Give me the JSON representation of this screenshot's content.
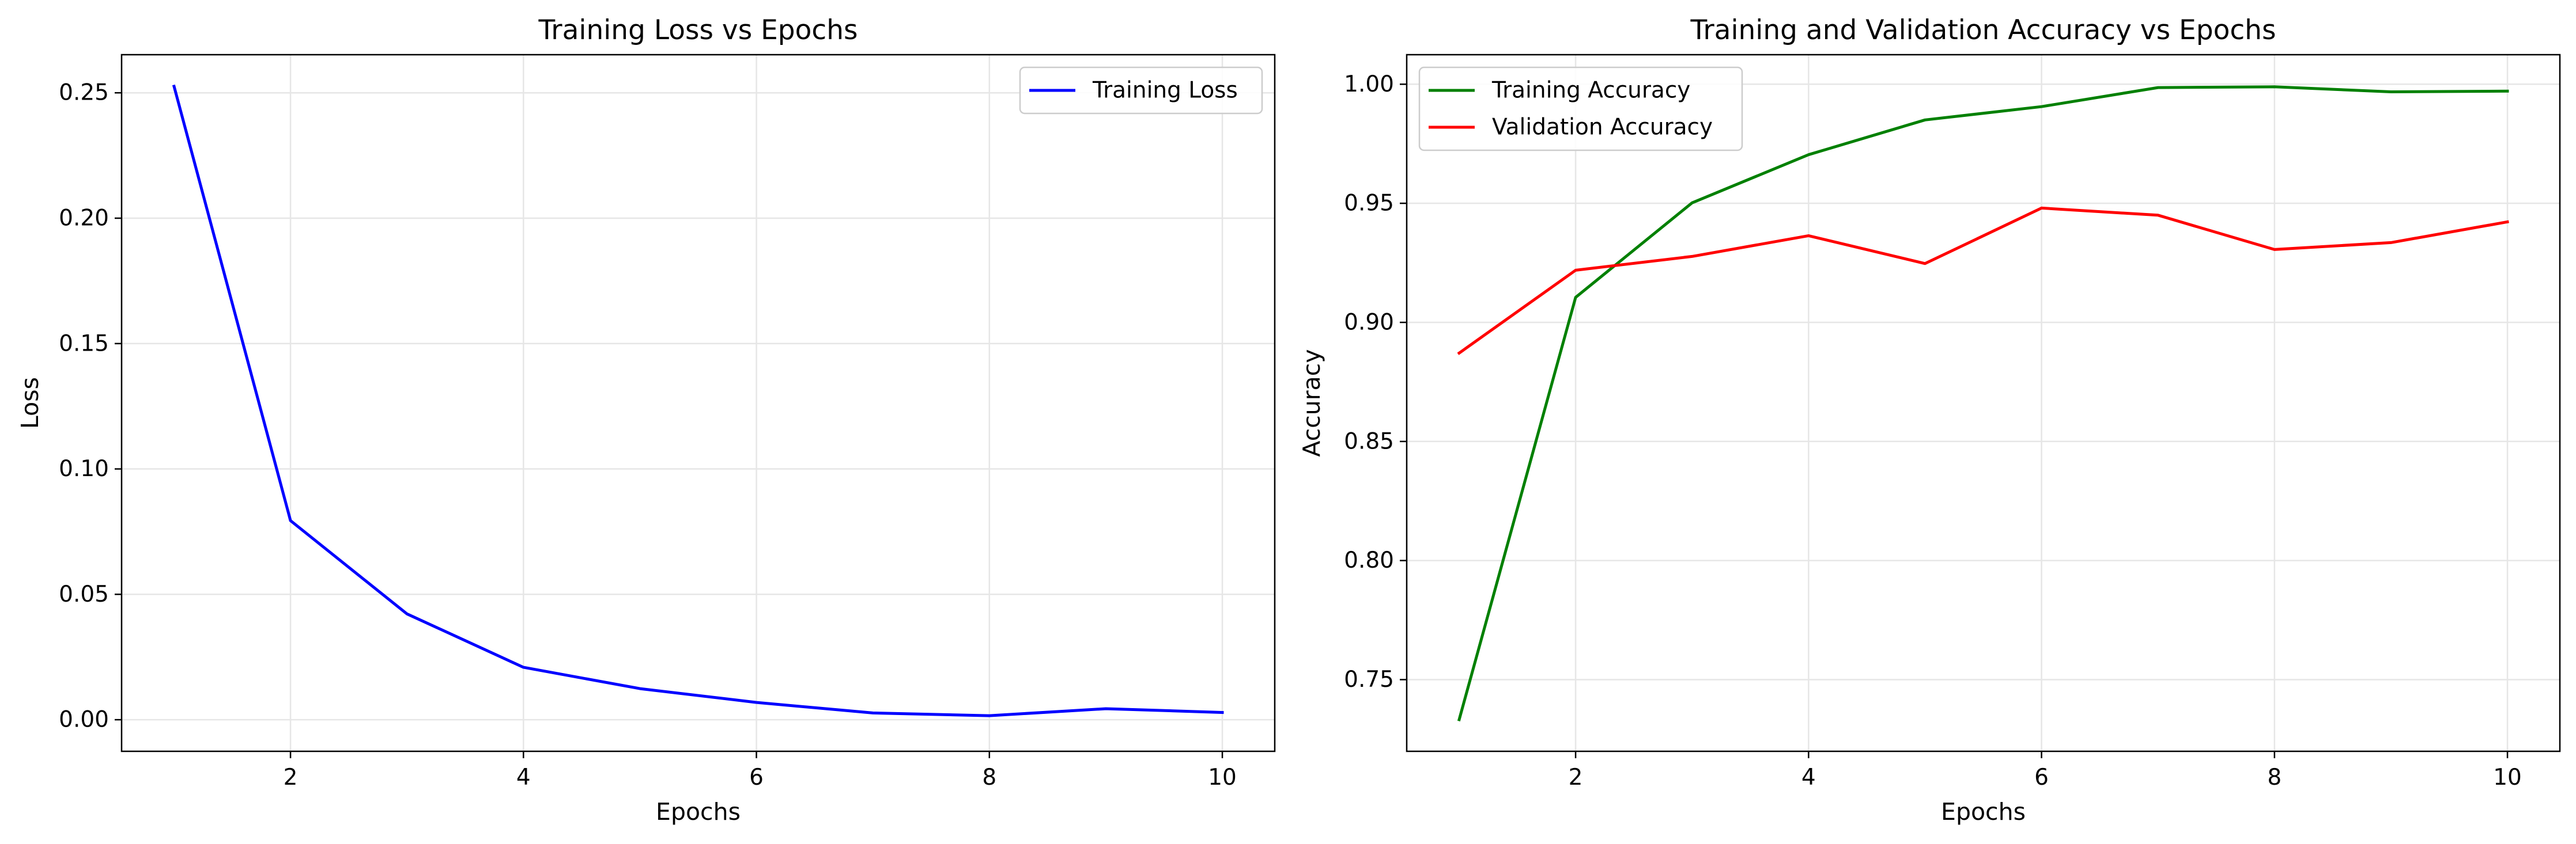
{
  "chart_data": [
    {
      "type": "line",
      "title": "Training Loss vs Epochs",
      "xlabel": "Epochs",
      "ylabel": "Loss",
      "x": [
        1,
        2,
        3,
        4,
        5,
        6,
        7,
        8,
        9,
        10
      ],
      "xlim": [
        0.55,
        10.45
      ],
      "ylim": [
        -0.0126,
        0.2652
      ],
      "xticks": [
        2,
        4,
        6,
        8,
        10
      ],
      "yticks": [
        0.0,
        0.05,
        0.1,
        0.15,
        0.2,
        0.25
      ],
      "ytick_labels": [
        "0.00",
        "0.05",
        "0.10",
        "0.15",
        "0.20",
        "0.25"
      ],
      "grid": true,
      "legend": "upper right",
      "series": [
        {
          "name": "Training Loss",
          "color": "#0000ff",
          "values": [
            0.2526,
            0.0794,
            0.0422,
            0.0209,
            0.0124,
            0.0069,
            0.0027,
            0.0016,
            0.0044,
            0.0029
          ]
        }
      ]
    },
    {
      "type": "line",
      "title": "Training and Validation Accuracy vs Epochs",
      "xlabel": "Epochs",
      "ylabel": "Accuracy",
      "x": [
        1,
        2,
        3,
        4,
        5,
        6,
        7,
        8,
        9,
        10
      ],
      "xlim": [
        0.55,
        10.45
      ],
      "ylim": [
        0.7199,
        1.0124
      ],
      "xticks": [
        2,
        4,
        6,
        8,
        10
      ],
      "yticks": [
        0.75,
        0.8,
        0.85,
        0.9,
        0.95,
        1.0
      ],
      "ytick_labels": [
        "0.75",
        "0.80",
        "0.85",
        "0.90",
        "0.95",
        "1.00"
      ],
      "grid": true,
      "legend": "upper left",
      "series": [
        {
          "name": "Training Accuracy",
          "color": "#008000",
          "values": [
            0.7332,
            0.9105,
            0.9502,
            0.9704,
            0.985,
            0.9906,
            0.9986,
            0.9989,
            0.9968,
            0.9971
          ]
        },
        {
          "name": "Validation Accuracy",
          "color": "#ff0000",
          "values": [
            0.8871,
            0.9219,
            0.9277,
            0.9364,
            0.9247,
            0.948,
            0.945,
            0.9306,
            0.9335,
            0.9422
          ]
        }
      ]
    }
  ]
}
